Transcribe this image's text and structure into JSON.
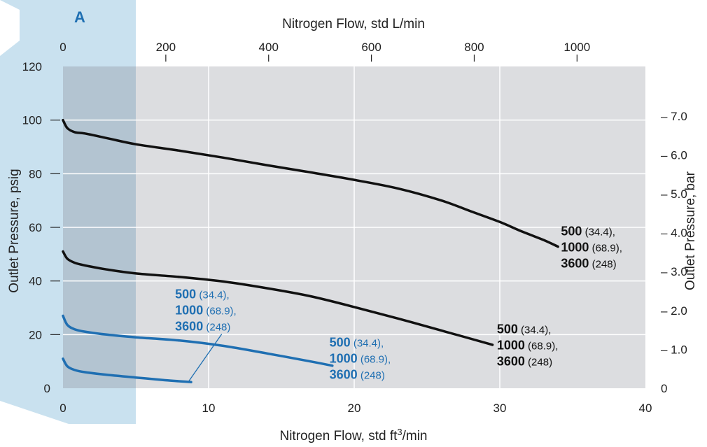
{
  "chart_data": {
    "type": "line",
    "title": "",
    "xlabel_bottom": "Nitrogen Flow, std ft",
    "xlabel_bottom_sup": "3",
    "xlabel_bottom_suffix": "/min",
    "xlabel_top": "Nitrogen Flow, std L/min",
    "ylabel_left": "Outlet Pressure, psig",
    "ylabel_right": "Outlet Pressure, bar",
    "xlim": [
      0,
      40
    ],
    "ylim": [
      0,
      120
    ],
    "x_ticks": [
      "0",
      "10",
      "20",
      "30",
      "40"
    ],
    "y_ticks": [
      "0",
      "20",
      "40",
      "60",
      "80",
      "100",
      "120"
    ],
    "top_ticks": [
      "0",
      "200",
      "400",
      "600",
      "800",
      "1000"
    ],
    "right_ticks": [
      "0",
      "1.0",
      "2.0",
      "3.0",
      "4.0",
      "5.0",
      "6.0",
      "7.0"
    ],
    "grid": true,
    "region": {
      "label": "A",
      "x_end": 5
    },
    "colors": {
      "black": "#111111",
      "blue": "#1f6fb2",
      "plot_bg": "#dcdde0",
      "region": "#c9e1ef",
      "region_overlay": "#b3c4d1"
    },
    "series": [
      {
        "color": "black",
        "x": [
          0,
          0.3,
          0.8,
          1.5,
          3,
          5,
          8,
          11,
          14,
          17,
          20,
          23,
          26,
          28,
          30,
          31.5,
          33,
          34
        ],
        "values": [
          100,
          97,
          95.5,
          95,
          93.3,
          91,
          88.6,
          86,
          83.2,
          80.5,
          77.7,
          74.5,
          70,
          66,
          62,
          58.5,
          55.3,
          52.8
        ]
      },
      {
        "color": "black",
        "x": [
          0,
          0.3,
          0.8,
          1.5,
          3,
          5,
          8,
          11,
          14,
          17,
          20,
          23,
          26,
          29.5
        ],
        "values": [
          51,
          48.3,
          46.8,
          45.8,
          44.3,
          42.8,
          41.5,
          39.8,
          37.3,
          34.3,
          30.3,
          26,
          21.5,
          16.2
        ]
      },
      {
        "color": "blue",
        "x": [
          0,
          0.3,
          0.8,
          1.5,
          3,
          5,
          8,
          11,
          14,
          17,
          18.5
        ],
        "values": [
          27,
          23.6,
          22,
          21.1,
          20,
          19,
          17.8,
          15.8,
          13,
          10,
          8.4
        ]
      },
      {
        "color": "blue",
        "x": [
          0,
          0.3,
          0.8,
          1.5,
          3,
          5,
          7,
          8.8
        ],
        "values": [
          11,
          8.2,
          6.8,
          6,
          5,
          4,
          3,
          2.3
        ]
      }
    ],
    "annotations": [
      {
        "color": "black",
        "x": 34.2,
        "y": 57,
        "lines": [
          {
            "big": "500",
            "small": " (34.4),"
          },
          {
            "big": "1000",
            "small": " (68.9),"
          },
          {
            "big": "3600",
            "small": " (248)"
          }
        ]
      },
      {
        "color": "black",
        "x": 29.8,
        "y": 20.5,
        "lines": [
          {
            "big": "500",
            "small": " (34.4),"
          },
          {
            "big": "1000",
            "small": " (68.9),"
          },
          {
            "big": "3600",
            "small": " (248)"
          }
        ]
      },
      {
        "color": "blue",
        "x": 18.3,
        "y": 15.5,
        "lines": [
          {
            "big": "500",
            "small": " (34.4),"
          },
          {
            "big": "1000",
            "small": " (68.9),"
          },
          {
            "big": "3600",
            "small": " (248)"
          }
        ]
      },
      {
        "color": "blue",
        "x": 7.7,
        "y": 33.5,
        "lines": [
          {
            "big": "500",
            "small": " (34.4),"
          },
          {
            "big": "1000",
            "small": " (68.9),"
          },
          {
            "big": "3600",
            "small": " (248)"
          }
        ]
      }
    ],
    "leader_line": {
      "from": [
        10.9,
        20.2
      ],
      "to": [
        8.6,
        2.3
      ]
    }
  }
}
